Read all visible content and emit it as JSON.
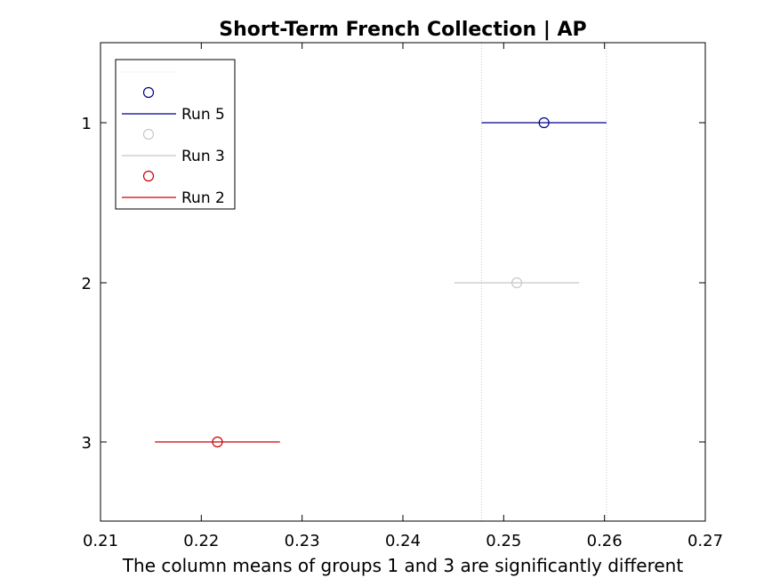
{
  "chart_data": {
    "type": "interval",
    "title": "Short-Term French Collection | AP",
    "xlabel": "The column means of groups 1 and 3 are significantly different",
    "ylabel": "",
    "xlim": [
      0.21,
      0.27
    ],
    "xticks": [
      "0.21",
      "0.22",
      "0.23",
      "0.24",
      "0.25",
      "0.26",
      "0.27"
    ],
    "yticks": [
      "1",
      "2",
      "3"
    ],
    "grid": false,
    "reference_lines_x": [
      0.2478,
      0.2602
    ],
    "series": [
      {
        "name": "Run 5",
        "group": 1,
        "mean": 0.254,
        "lower": 0.2478,
        "upper": 0.2602,
        "color": "#00008b"
      },
      {
        "name": "Run 3",
        "group": 2,
        "mean": 0.2513,
        "lower": 0.2451,
        "upper": 0.2575,
        "color": "#c8c8c8"
      },
      {
        "name": "Run 2",
        "group": 3,
        "mean": 0.2216,
        "lower": 0.2154,
        "upper": 0.2278,
        "color": "#cc0000"
      }
    ],
    "legend": {
      "location": "top-left",
      "entries": [
        {
          "label": "",
          "marker": "dotted-line",
          "color": "#dcdcdc"
        },
        {
          "label": "",
          "marker": "circle",
          "color": "#00008b"
        },
        {
          "label": "Run 5",
          "marker": "line",
          "color": "#00008b"
        },
        {
          "label": "",
          "marker": "circle",
          "color": "#c8c8c8"
        },
        {
          "label": "Run 3",
          "marker": "line",
          "color": "#c8c8c8"
        },
        {
          "label": "",
          "marker": "circle",
          "color": "#cc0000"
        },
        {
          "label": "Run 2",
          "marker": "line",
          "color": "#cc0000"
        }
      ]
    }
  }
}
